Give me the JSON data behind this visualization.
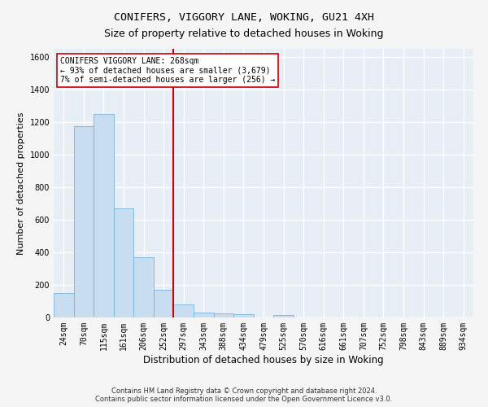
{
  "title1": "CONIFERS, VIGGORY LANE, WOKING, GU21 4XH",
  "title2": "Size of property relative to detached houses in Woking",
  "xlabel": "Distribution of detached houses by size in Woking",
  "ylabel": "Number of detached properties",
  "categories": [
    "24sqm",
    "70sqm",
    "115sqm",
    "161sqm",
    "206sqm",
    "252sqm",
    "297sqm",
    "343sqm",
    "388sqm",
    "434sqm",
    "479sqm",
    "525sqm",
    "570sqm",
    "616sqm",
    "661sqm",
    "707sqm",
    "752sqm",
    "798sqm",
    "843sqm",
    "889sqm",
    "934sqm"
  ],
  "values": [
    150,
    1175,
    1250,
    670,
    370,
    170,
    80,
    30,
    25,
    20,
    0,
    15,
    0,
    0,
    0,
    0,
    0,
    0,
    0,
    0,
    0
  ],
  "bar_color": "#c8ddf0",
  "bar_edge_color": "#7ab3d8",
  "vline_x_idx": 5.5,
  "vline_color": "#cc0000",
  "ylim": [
    0,
    1650
  ],
  "yticks": [
    0,
    200,
    400,
    600,
    800,
    1000,
    1200,
    1400,
    1600
  ],
  "annotation_text": "CONIFERS VIGGORY LANE: 268sqm\n← 93% of detached houses are smaller (3,679)\n7% of semi-detached houses are larger (256) →",
  "annotation_box_facecolor": "#ffffff",
  "annotation_box_edgecolor": "#cc0000",
  "footer": "Contains HM Land Registry data © Crown copyright and database right 2024.\nContains public sector information licensed under the Open Government Licence v3.0.",
  "plot_bg_color": "#e8eef5",
  "fig_bg_color": "#f5f5f5",
  "grid_color": "#ffffff",
  "title1_fontsize": 9.5,
  "title2_fontsize": 9,
  "xlabel_fontsize": 8.5,
  "ylabel_fontsize": 8,
  "tick_fontsize": 7,
  "annot_fontsize": 7,
  "footer_fontsize": 6
}
